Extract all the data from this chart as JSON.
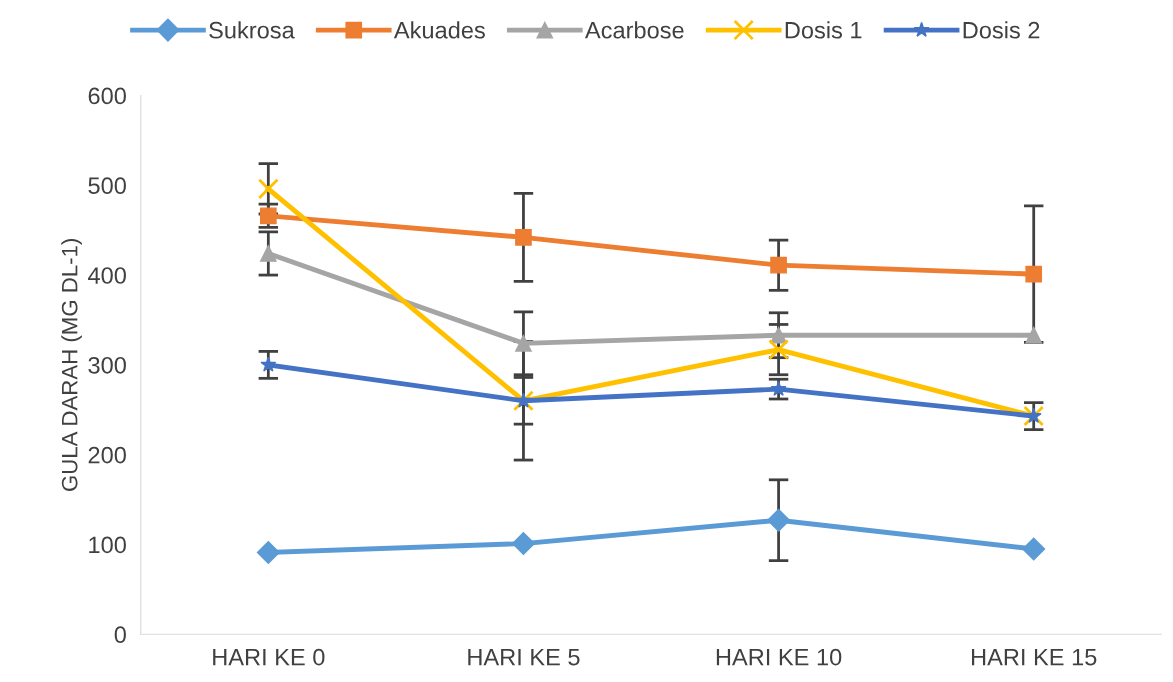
{
  "chart_data": {
    "type": "line",
    "ylabel": "GULA DARAH (MG DL-1)",
    "categories": [
      "HARI KE 0",
      "HARI KE 5",
      "HARI KE 10",
      "HARI KE 15"
    ],
    "series": [
      {
        "name": "Sukrosa",
        "color": "#5b9bd5",
        "marker": "diamond",
        "values": [
          91,
          101,
          127,
          95
        ],
        "errors": [
          null,
          null,
          45,
          null
        ]
      },
      {
        "name": "Akuades",
        "color": "#ed7d31",
        "marker": "square",
        "values": [
          466,
          442,
          411,
          401
        ],
        "errors": [
          13,
          49,
          28,
          76
        ]
      },
      {
        "name": "Acarbose",
        "color": "#a5a5a5",
        "marker": "triangle",
        "values": [
          424,
          324,
          333,
          333
        ],
        "errors": [
          24,
          35,
          25,
          null
        ]
      },
      {
        "name": "Dosis 1",
        "color": "#ffc000",
        "marker": "cross",
        "values": [
          496,
          260,
          317,
          243
        ],
        "errors": [
          28,
          66,
          28,
          null
        ]
      },
      {
        "name": "Dosis 2",
        "color": "#4472c4",
        "marker": "star",
        "values": [
          300,
          260,
          273,
          243
        ],
        "errors": [
          15,
          26,
          11,
          15
        ]
      }
    ],
    "ylim": [
      0,
      600
    ],
    "yticks": [
      0,
      100,
      200,
      300,
      400,
      500,
      600
    ],
    "grid": false,
    "legend": "top",
    "line_style": "solid"
  }
}
